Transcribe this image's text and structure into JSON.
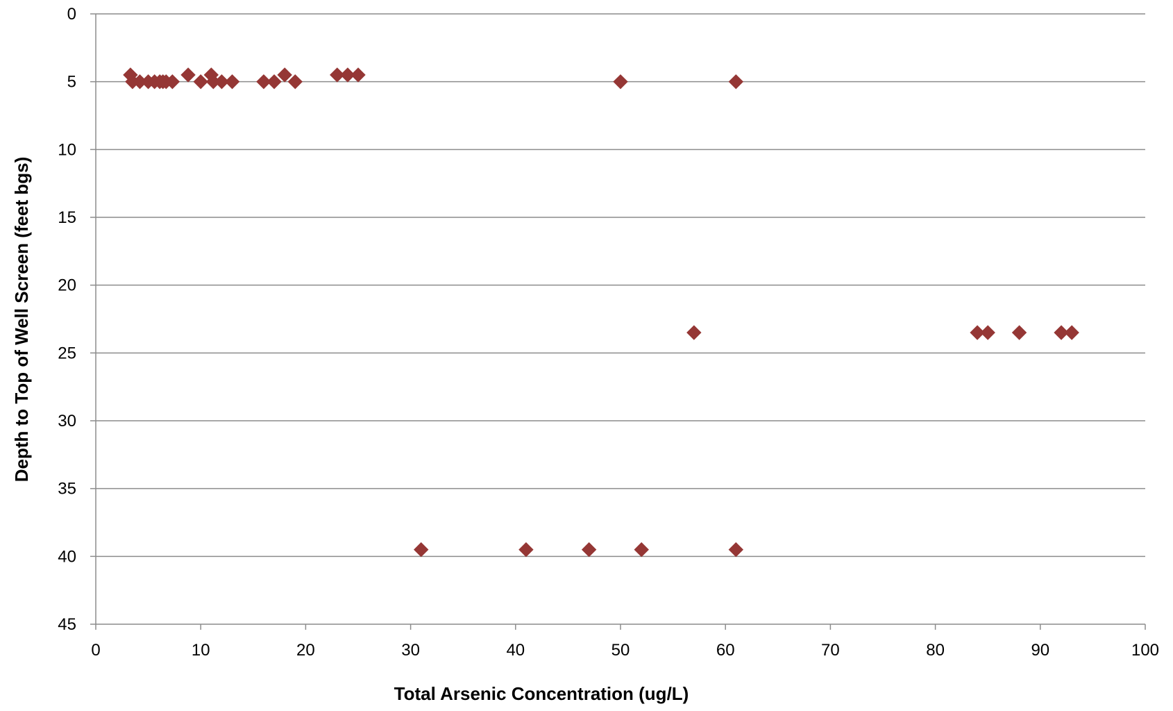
{
  "chart_data": {
    "type": "scatter",
    "title": "",
    "xlabel": "Total Arsenic Concentration (ug/L)",
    "ylabel": "Depth to Top of Well Screen (feet bgs)",
    "xlim": [
      0,
      100
    ],
    "ylim": [
      0,
      45
    ],
    "y_inverted": true,
    "x_ticks": [
      0,
      10,
      20,
      30,
      40,
      50,
      60,
      70,
      80,
      90,
      100
    ],
    "y_ticks": [
      0,
      5,
      10,
      15,
      20,
      25,
      30,
      35,
      40,
      45
    ],
    "grid": "horizontal",
    "legend": "none",
    "marker": "diamond",
    "marker_color": "#953735",
    "points": [
      {
        "x": 3.3,
        "y": 4.5
      },
      {
        "x": 3.5,
        "y": 5
      },
      {
        "x": 4.2,
        "y": 5
      },
      {
        "x": 5,
        "y": 5
      },
      {
        "x": 5.6,
        "y": 5
      },
      {
        "x": 6.1,
        "y": 5
      },
      {
        "x": 6.4,
        "y": 5
      },
      {
        "x": 6.7,
        "y": 5
      },
      {
        "x": 7.3,
        "y": 5
      },
      {
        "x": 8.8,
        "y": 4.5
      },
      {
        "x": 10,
        "y": 5
      },
      {
        "x": 11,
        "y": 4.5
      },
      {
        "x": 11.2,
        "y": 5
      },
      {
        "x": 12,
        "y": 5
      },
      {
        "x": 13,
        "y": 5
      },
      {
        "x": 16,
        "y": 5
      },
      {
        "x": 17,
        "y": 5
      },
      {
        "x": 18,
        "y": 4.5
      },
      {
        "x": 19,
        "y": 5
      },
      {
        "x": 23,
        "y": 4.5
      },
      {
        "x": 24,
        "y": 4.5
      },
      {
        "x": 25,
        "y": 4.5
      },
      {
        "x": 50,
        "y": 5
      },
      {
        "x": 61,
        "y": 5
      },
      {
        "x": 57,
        "y": 23.5
      },
      {
        "x": 84,
        "y": 23.5
      },
      {
        "x": 85,
        "y": 23.5
      },
      {
        "x": 88,
        "y": 23.5
      },
      {
        "x": 92,
        "y": 23.5
      },
      {
        "x": 93,
        "y": 23.5
      },
      {
        "x": 31,
        "y": 39.5
      },
      {
        "x": 41,
        "y": 39.5
      },
      {
        "x": 47,
        "y": 39.5
      },
      {
        "x": 52,
        "y": 39.5
      },
      {
        "x": 61,
        "y": 39.5
      }
    ]
  }
}
